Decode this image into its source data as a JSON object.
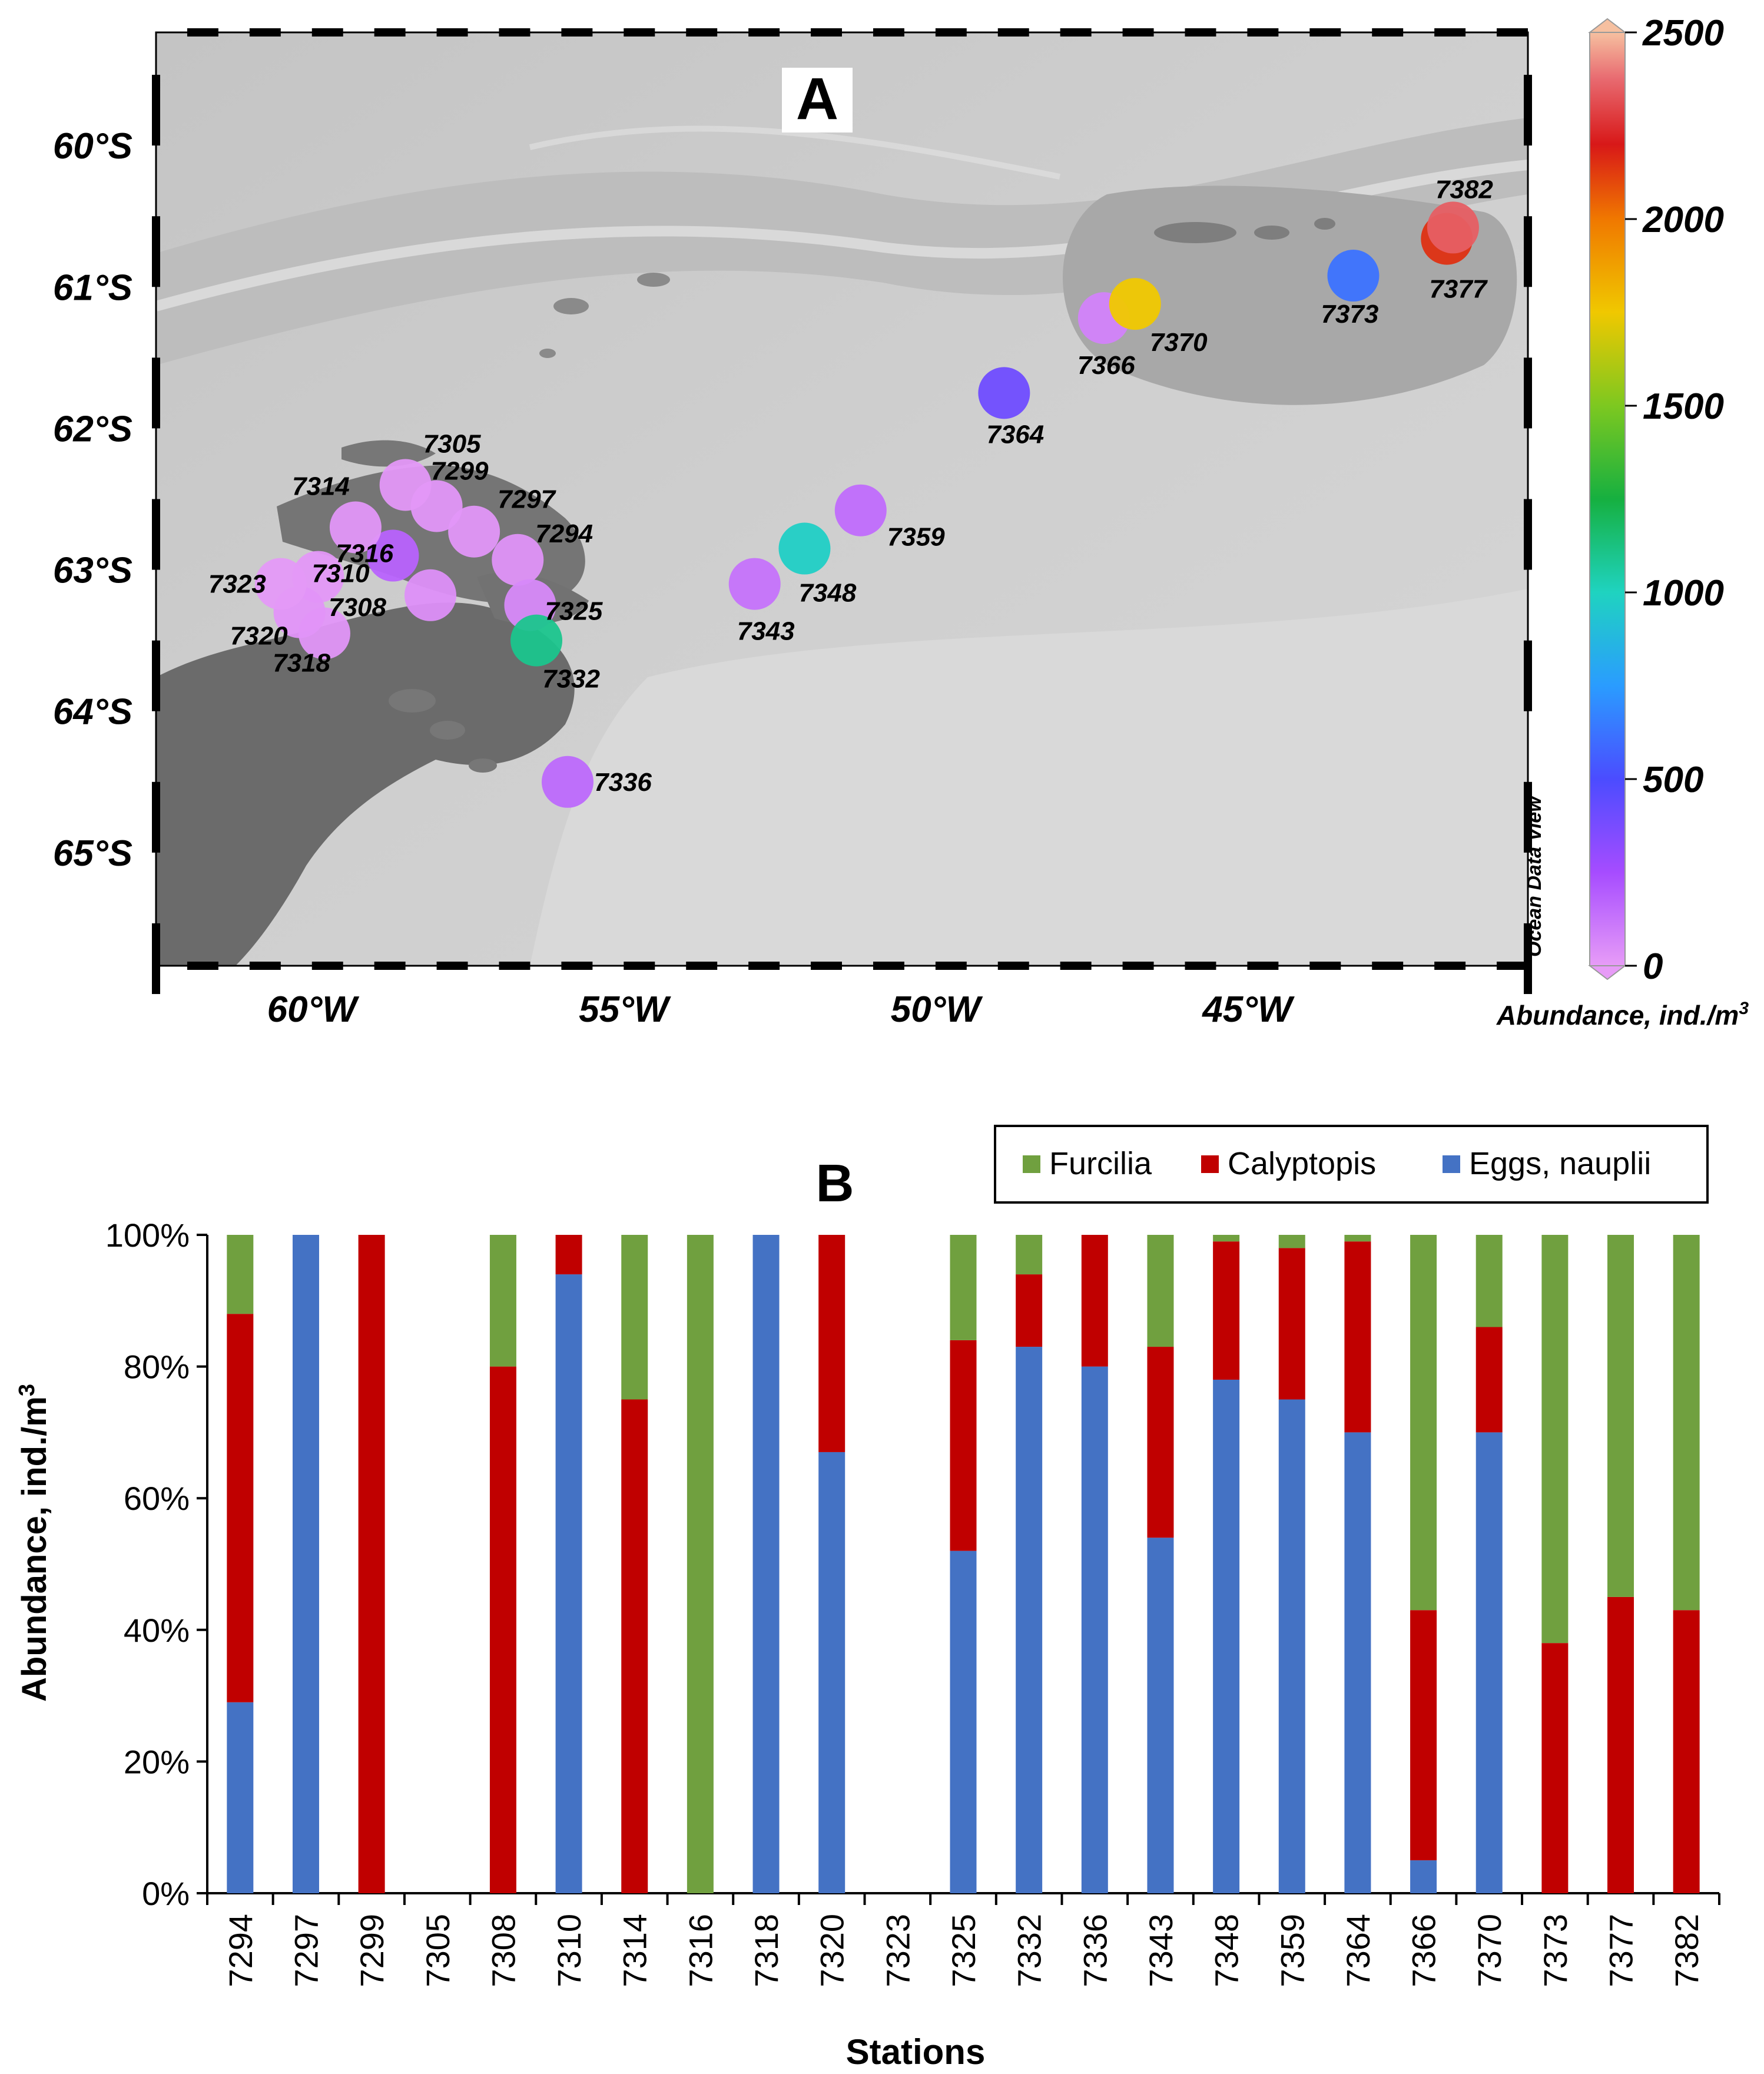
{
  "chart_data": [
    {
      "type": "scatter",
      "panel_label": "A",
      "title": "",
      "x_ticks": [
        "60°W",
        "55°W",
        "50°W",
        "45°W"
      ],
      "x_tick_values": [
        -60,
        -55,
        -50,
        -45
      ],
      "y_ticks": [
        "60°S",
        "61°S",
        "62°S",
        "63°S",
        "64°S",
        "65°S"
      ],
      "y_tick_values": [
        -60,
        -61,
        -62,
        -63,
        -64,
        -65
      ],
      "xlim": [
        -62.5,
        -40.5
      ],
      "ylim": [
        -65.8,
        -59.2
      ],
      "watermark": "Ocean Data View",
      "colorbar": {
        "label": "Abundance, ind./m",
        "label_superscript": "3",
        "ticks": [
          "0",
          "500",
          "1000",
          "1500",
          "2000",
          "2500"
        ],
        "tick_values": [
          0,
          500,
          1000,
          1500,
          2000,
          2500
        ],
        "range": [
          0,
          2500
        ]
      },
      "stations": [
        {
          "id": "7294",
          "lon": -56.7,
          "lat": -62.93,
          "abundance": 30
        },
        {
          "id": "7297",
          "lon": -57.4,
          "lat": -62.73,
          "abundance": 20
        },
        {
          "id": "7299",
          "lon": -58.0,
          "lat": -62.55,
          "abundance": 20
        },
        {
          "id": "7305",
          "lon": -58.5,
          "lat": -62.4,
          "abundance": 15
        },
        {
          "id": "7308",
          "lon": -58.1,
          "lat": -63.18,
          "abundance": 40
        },
        {
          "id": "7310",
          "lon": -58.7,
          "lat": -62.9,
          "abundance": 180
        },
        {
          "id": "7314",
          "lon": -59.3,
          "lat": -62.7,
          "abundance": 20
        },
        {
          "id": "7316",
          "lon": -59.9,
          "lat": -63.05,
          "abundance": 15
        },
        {
          "id": "7318",
          "lon": -59.8,
          "lat": -63.45,
          "abundance": 20
        },
        {
          "id": "7320",
          "lon": -60.2,
          "lat": -63.3,
          "abundance": 25
        },
        {
          "id": "7323",
          "lon": -60.5,
          "lat": -63.1,
          "abundance": 10
        },
        {
          "id": "7325",
          "lon": -56.5,
          "lat": -63.25,
          "abundance": 60
        },
        {
          "id": "7332",
          "lon": -56.4,
          "lat": -63.5,
          "abundance": 1100
        },
        {
          "id": "7336",
          "lon": -55.9,
          "lat": -64.5,
          "abundance": 160
        },
        {
          "id": "7343",
          "lon": -52.9,
          "lat": -63.1,
          "abundance": 130
        },
        {
          "id": "7348",
          "lon": -52.1,
          "lat": -62.85,
          "abundance": 980
        },
        {
          "id": "7359",
          "lon": -51.2,
          "lat": -62.58,
          "abundance": 150
        },
        {
          "id": "7364",
          "lon": -48.9,
          "lat": -61.75,
          "abundance": 400
        },
        {
          "id": "7366",
          "lon": -47.3,
          "lat": -61.22,
          "abundance": 80
        },
        {
          "id": "7370",
          "lon": -46.8,
          "lat": -61.12,
          "abundance": 1750
        },
        {
          "id": "7373",
          "lon": -43.3,
          "lat": -60.92,
          "abundance": 620
        },
        {
          "id": "7377",
          "lon": -41.8,
          "lat": -60.66,
          "abundance": 2150
        },
        {
          "id": "7382",
          "lon": -41.7,
          "lat": -60.58,
          "abundance": 2350
        }
      ]
    },
    {
      "type": "bar",
      "stacked": true,
      "panel_label": "B",
      "title": "",
      "xlabel": "Stations",
      "ylabel": "Abundance, ind./m",
      "ylabel_superscript": "3",
      "ylim": [
        0,
        100
      ],
      "y_ticks": [
        "0%",
        "20%",
        "40%",
        "60%",
        "80%",
        "100%"
      ],
      "y_tick_values": [
        0,
        20,
        40,
        60,
        80,
        100
      ],
      "legend_position": "top-right",
      "categories": [
        "7294",
        "7297",
        "7299",
        "7305",
        "7308",
        "7310",
        "7314",
        "7316",
        "7318",
        "7320",
        "7323",
        "7325",
        "7332",
        "7336",
        "7343",
        "7348",
        "7359",
        "7364",
        "7366",
        "7370",
        "7373",
        "7377",
        "7382"
      ],
      "series": [
        {
          "name": "Eggs, nauplii",
          "color": "#4472c4",
          "values": [
            29,
            100,
            0,
            0,
            0,
            94,
            0,
            0,
            100,
            67,
            0,
            52,
            83,
            80,
            54,
            78,
            75,
            70,
            5,
            70,
            0,
            0,
            0
          ]
        },
        {
          "name": "Calyptopis",
          "color": "#c00000",
          "values": [
            59,
            0,
            100,
            0,
            80,
            6,
            75,
            0,
            0,
            33,
            0,
            32,
            11,
            20,
            29,
            21,
            23,
            29,
            38,
            16,
            38,
            45,
            43
          ]
        },
        {
          "name": "Furcilia",
          "color": "#70a03f",
          "values": [
            12,
            0,
            0,
            0,
            20,
            0,
            25,
            100,
            0,
            0,
            0,
            16,
            6,
            0,
            17,
            1,
            2,
            1,
            57,
            14,
            62,
            55,
            57
          ]
        }
      ],
      "legend_order": [
        "Furcilia",
        "Calyptopis",
        "Eggs, nauplii"
      ]
    }
  ]
}
